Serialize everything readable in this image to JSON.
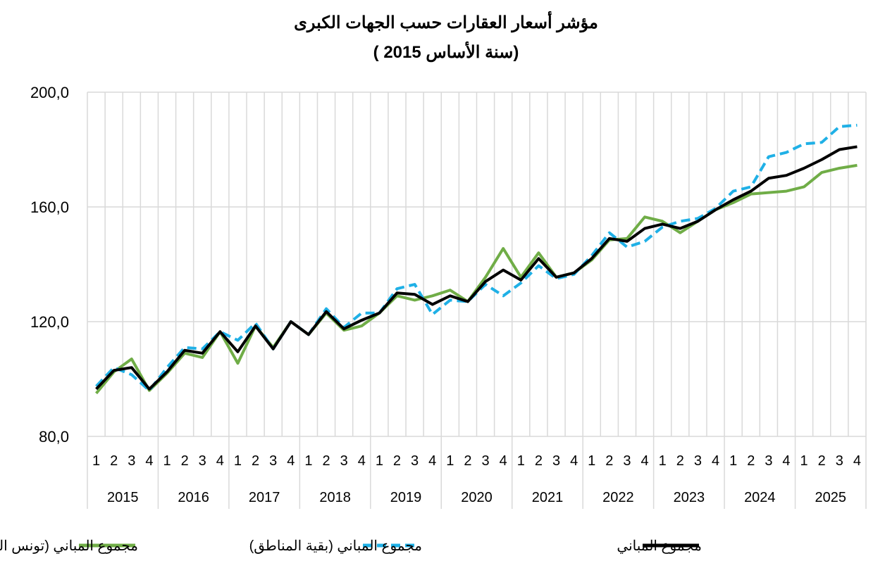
{
  "chart_data": {
    "type": "line",
    "title": "مؤشر أسعار العقارات حسب الجهات الكبرى",
    "subtitle": "(سنة الأساس 2015 )",
    "ylim": [
      80,
      200
    ],
    "yticks": [
      "200,0",
      "160,0",
      "120,0",
      "80,0"
    ],
    "ytick_values": [
      200,
      160,
      120,
      80
    ],
    "grid": true,
    "legend_position": "bottom",
    "quarter_labels": [
      "1",
      "2",
      "3",
      "4"
    ],
    "years": [
      "2015",
      "2016",
      "2017",
      "2018",
      "2019",
      "2020",
      "2021",
      "2022",
      "2023",
      "2024",
      "2025"
    ],
    "series": [
      {
        "name": "مجموع المباني (تونس الكبرى)",
        "color": "#70ad47",
        "dash": "solid",
        "values": [
          95.0,
          102.5,
          107.0,
          96.0,
          102.0,
          109.0,
          107.5,
          116.5,
          105.5,
          118.5,
          111.0,
          120.0,
          115.5,
          123.0,
          117.0,
          118.5,
          123.0,
          129.0,
          127.5,
          129.0,
          131.0,
          127.0,
          135.5,
          145.5,
          135.5,
          144.0,
          135.5,
          137.0,
          141.5,
          148.5,
          149.0,
          156.5,
          155.0,
          151.0,
          155.0,
          159.0,
          161.5,
          164.5,
          165.0,
          165.5,
          167.0,
          172.0,
          173.5,
          174.5
        ]
      },
      {
        "name": "مجموع المباني (بقية المناطق)",
        "color": "#1fb0e6",
        "dash": "dashed",
        "values": [
          97.5,
          104.0,
          101.5,
          96.0,
          104.0,
          111.0,
          110.5,
          116.5,
          113.5,
          119.5,
          110.5,
          120.0,
          115.5,
          124.5,
          118.0,
          123.0,
          123.0,
          131.5,
          133.0,
          122.5,
          127.5,
          127.0,
          133.0,
          129.0,
          133.5,
          139.5,
          135.0,
          136.5,
          143.0,
          151.0,
          146.0,
          148.0,
          153.0,
          155.0,
          156.0,
          159.5,
          165.5,
          167.0,
          177.5,
          179.0,
          182.0,
          182.5,
          188.0,
          188.5
        ]
      },
      {
        "name": "مجموع المباني",
        "color": "#000000",
        "dash": "solid",
        "values": [
          96.5,
          103.0,
          104.0,
          96.5,
          102.5,
          110.0,
          109.0,
          116.5,
          109.5,
          118.5,
          110.5,
          120.0,
          115.5,
          123.5,
          117.5,
          120.5,
          123.0,
          130.0,
          129.5,
          126.0,
          129.0,
          127.0,
          134.0,
          138.0,
          134.5,
          142.0,
          135.5,
          137.0,
          142.0,
          149.0,
          148.0,
          152.5,
          154.0,
          152.5,
          155.0,
          159.0,
          162.5,
          165.5,
          170.0,
          171.0,
          173.5,
          176.5,
          180.0,
          181.0
        ]
      }
    ]
  }
}
